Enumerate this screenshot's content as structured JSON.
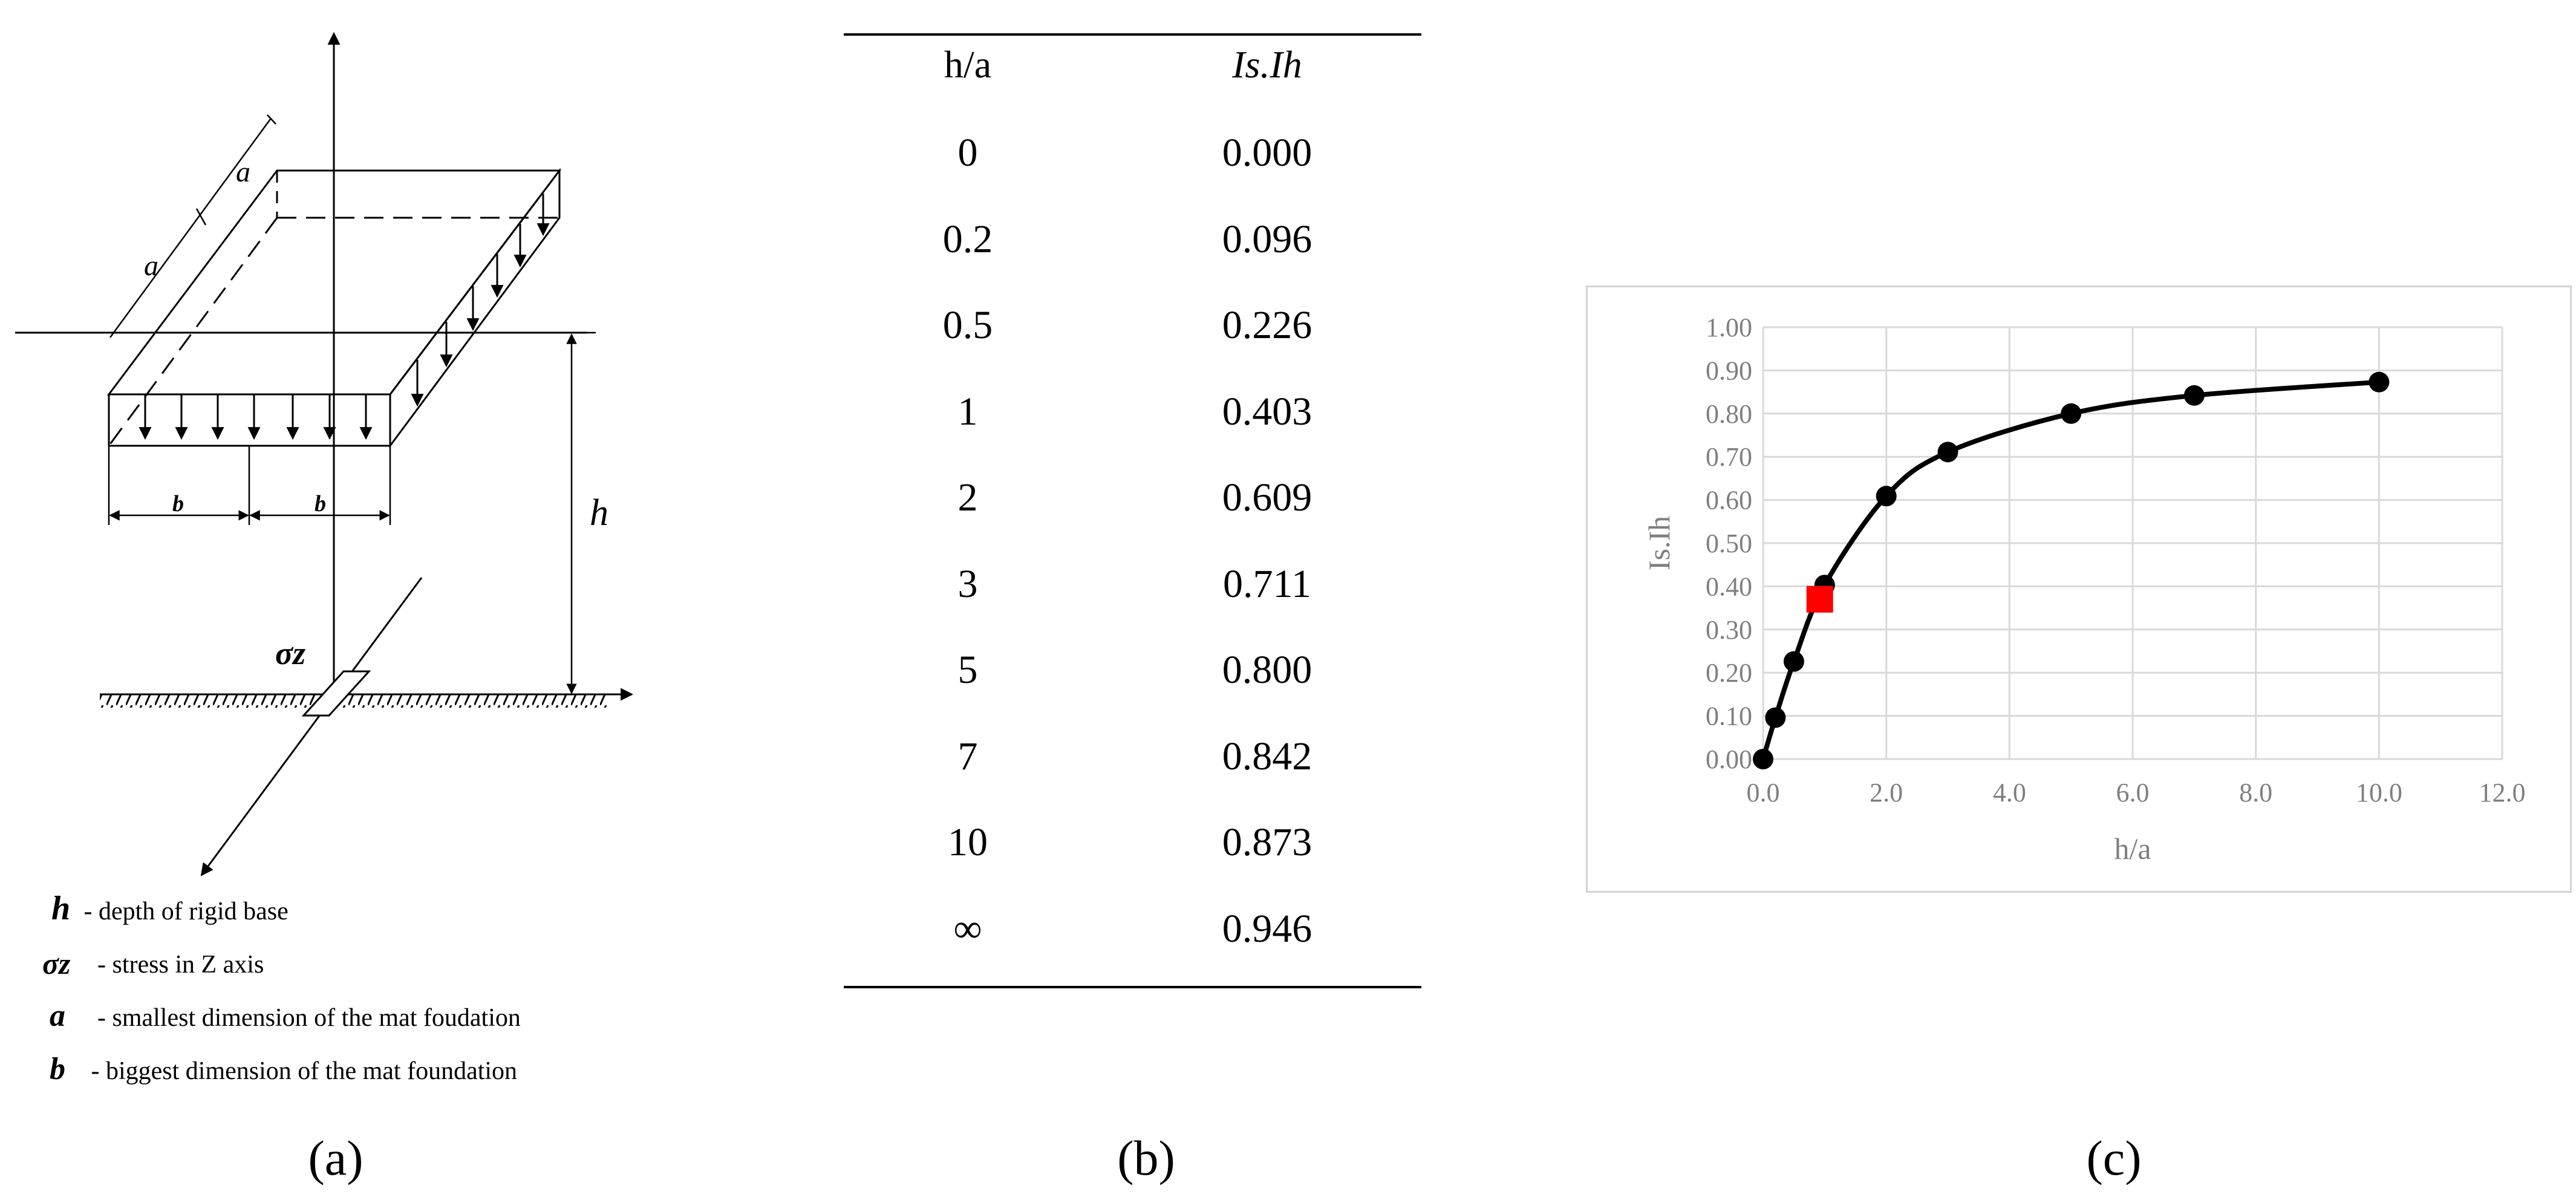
{
  "panel_a": {
    "diagram": {
      "dim_a_top": "a",
      "dim_a_side": "a",
      "dim_b_left": "b",
      "dim_b_right": "b",
      "dim_h": "h",
      "sigma_label": "σz"
    },
    "legend": [
      {
        "symbol": "h",
        "text": " - depth of rigid base"
      },
      {
        "symbol": "σz",
        "text": "  - stress in Z axis"
      },
      {
        "symbol": "a",
        "text": "  - smallest dimension of the mat foudation"
      },
      {
        "symbol": "b",
        "text": " - biggest dimension of the mat foundation"
      }
    ],
    "sub_label": "(a)"
  },
  "panel_b": {
    "headers": {
      "col1": "h/a",
      "col2": "Is.Ih"
    },
    "rows": [
      {
        "ha": "0",
        "isih": "0.000"
      },
      {
        "ha": "0.2",
        "isih": "0.096"
      },
      {
        "ha": "0.5",
        "isih": "0.226"
      },
      {
        "ha": "1",
        "isih": "0.403"
      },
      {
        "ha": "2",
        "isih": "0.609"
      },
      {
        "ha": "3",
        "isih": "0.711"
      },
      {
        "ha": "5",
        "isih": "0.800"
      },
      {
        "ha": "7",
        "isih": "0.842"
      },
      {
        "ha": "10",
        "isih": "0.873"
      },
      {
        "ha": "∞",
        "isih": "0.946"
      }
    ],
    "sub_label": "(b)"
  },
  "panel_c": {
    "sub_label": "(c)"
  },
  "chart_data": {
    "type": "scatter",
    "title": "",
    "xlabel": "h/a",
    "ylabel": "Is.Ih",
    "xlim": [
      0,
      12
    ],
    "ylim": [
      0,
      1
    ],
    "xticks": [
      "0.0",
      "2.0",
      "4.0",
      "6.0",
      "8.0",
      "10.0",
      "12.0"
    ],
    "yticks": [
      "0.00",
      "0.10",
      "0.20",
      "0.30",
      "0.40",
      "0.50",
      "0.60",
      "0.70",
      "0.80",
      "0.90",
      "1.00"
    ],
    "grid": true,
    "series": [
      {
        "x": [
          0,
          0.2,
          0.5,
          1,
          2,
          3,
          5,
          7,
          10
        ],
        "y": [
          0.0,
          0.096,
          0.226,
          0.403,
          0.609,
          0.711,
          0.8,
          0.842,
          0.873
        ],
        "color": "#000000",
        "marker": "circle",
        "line": "smooth"
      },
      {
        "x": [
          0.92
        ],
        "y": [
          0.37
        ],
        "color": "#ff0000",
        "marker": "square"
      }
    ]
  }
}
